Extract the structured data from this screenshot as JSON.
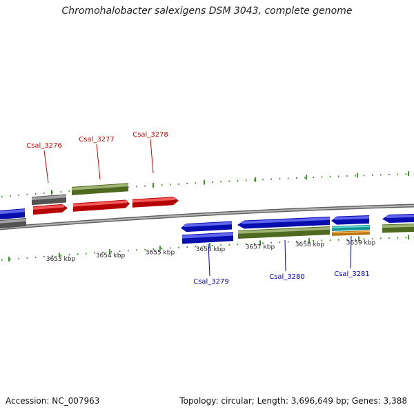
{
  "title": "Chromohalobacter salexigens DSM 3043, complete genome",
  "footer": {
    "accession": "Accession: NC_007963",
    "topology": "Topology: circular; Length: 3,696,649 bp; Genes: 3,388"
  },
  "colors": {
    "backbone": "#8c8c8c",
    "tick": "#2f8a1e",
    "forward_label": "#d40000",
    "reverse_label": "#0000c8",
    "cds_blue": "#0a12e6",
    "cds_red": "#f00000",
    "cds_gray": "#6e6e6e",
    "cds_olive": "#6b8c2a",
    "cds_cyan": "#18c8c8",
    "cds_orange": "#f59a12"
  },
  "scale": {
    "ticks": [
      {
        "label": "3653 kbp"
      },
      {
        "label": "3654 kbp"
      },
      {
        "label": "3655 kbp"
      },
      {
        "label": "3656 kbp"
      },
      {
        "label": "3657 kbp"
      },
      {
        "label": "3658 kbp"
      },
      {
        "label": "3659 kbp"
      }
    ]
  },
  "labels": {
    "forward": [
      {
        "text": "Csal_3276"
      },
      {
        "text": "Csal_3277"
      },
      {
        "text": "Csal_3278"
      }
    ],
    "reverse": [
      {
        "text": "Csal_3279"
      },
      {
        "text": "Csal_3280"
      },
      {
        "text": "Csal_3281"
      }
    ]
  },
  "features": [
    {
      "name": "cds-left-edge-blue",
      "strand": "reverse",
      "color": "cds_blue"
    },
    {
      "name": "cds-left-edge-gray",
      "strand": "reverse",
      "color": "cds_gray"
    },
    {
      "name": "csal-3276-gray",
      "strand": "forward",
      "color": "cds_gray"
    },
    {
      "name": "csal-3276-red",
      "strand": "forward",
      "color": "cds_red"
    },
    {
      "name": "csal-3277-olive",
      "strand": "forward",
      "color": "cds_olive"
    },
    {
      "name": "csal-3277-red",
      "strand": "forward",
      "color": "cds_red"
    },
    {
      "name": "csal-3278-red",
      "strand": "forward",
      "color": "cds_red"
    },
    {
      "name": "csal-3279-blue-arrow",
      "strand": "reverse",
      "color": "cds_blue"
    },
    {
      "name": "csal-3279-blue",
      "strand": "reverse",
      "color": "cds_blue"
    },
    {
      "name": "csal-3280-blue-arrow",
      "strand": "reverse",
      "color": "cds_blue"
    },
    {
      "name": "csal-3280-olive",
      "strand": "reverse",
      "color": "cds_olive"
    },
    {
      "name": "csal-3281-blue-arrow",
      "strand": "reverse",
      "color": "cds_blue"
    },
    {
      "name": "csal-3281-cyan",
      "strand": "reverse",
      "color": "cds_cyan"
    },
    {
      "name": "csal-3281-orange",
      "strand": "reverse",
      "color": "cds_orange"
    },
    {
      "name": "cds-right-edge-blue",
      "strand": "reverse",
      "color": "cds_blue"
    },
    {
      "name": "cds-right-edge-olive",
      "strand": "reverse",
      "color": "cds_olive"
    }
  ]
}
